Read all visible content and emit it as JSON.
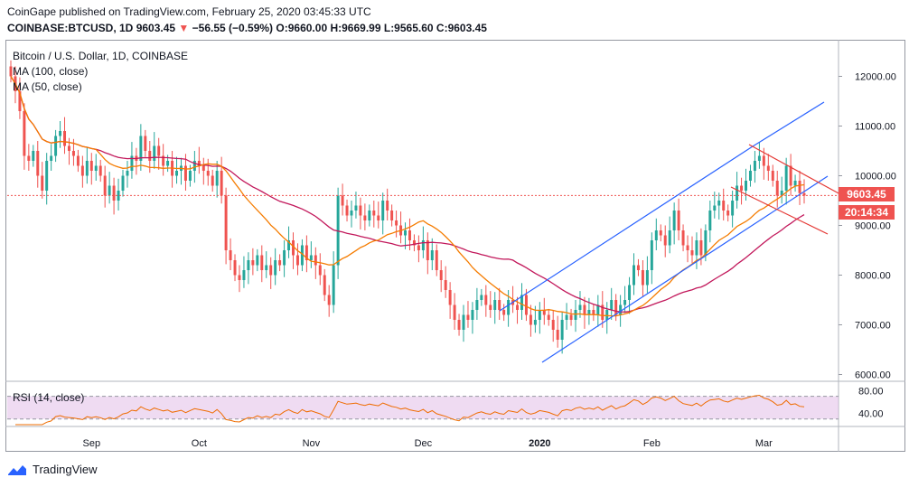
{
  "header": {
    "published": "CoinGape published on TradingView.com, February 25, 2020 03:45:33 UTC",
    "symbol": "COINBASE:BTCUSD, 1D",
    "last": "9603.45",
    "change": "−56.55 (−0.59%)",
    "open": "O:9660.00",
    "high": "H:9669.99",
    "low": "L:9565.60",
    "close": "C:9603.45"
  },
  "legend": {
    "title": "Bitcoin / U.S. Dollar, 1D, COINBASE",
    "ma100": "MA (100, close)",
    "ma50": "MA (50, close)"
  },
  "rsi": {
    "label": "RSI (14, close)",
    "ticks": [
      "80.00",
      "40.00"
    ]
  },
  "price_tag": {
    "value": "9603.45",
    "countdown": "20:14:34"
  },
  "footer": {
    "brand": "TradingView"
  },
  "colors": {
    "up": "#26a69a",
    "down": "#ef5350",
    "ma100": "#c2185b",
    "ma50": "#f57c00",
    "channel": "#2962ff",
    "wedge": "#e53935",
    "rsi_line": "#ef6c00",
    "rsi_band": "#e1bee7"
  },
  "chart_data": {
    "type": "candlestick",
    "x_ticks": [
      "Sep",
      "Oct",
      "Nov",
      "Dec",
      "2020",
      "Feb",
      "Mar"
    ],
    "y_ticks": [
      "12000.00",
      "11000.00",
      "10000.00",
      "9000.00",
      "8000.00",
      "7000.00",
      "6000.00"
    ],
    "ylim": [
      5900,
      12700
    ],
    "candles_close": [
      12000,
      11700,
      11300,
      10400,
      10300,
      10500,
      10000,
      9700,
      10300,
      10400,
      10800,
      10900,
      10600,
      10500,
      10400,
      10200,
      10000,
      10300,
      10100,
      10200,
      10000,
      9600,
      9800,
      9500,
      9700,
      10000,
      10100,
      10400,
      10300,
      10800,
      10500,
      10300,
      10600,
      10400,
      10200,
      10300,
      10000,
      10100,
      10200,
      9900,
      10100,
      10300,
      10200,
      10100,
      10000,
      9800,
      10100,
      9600,
      8500,
      8300,
      8000,
      7900,
      8100,
      8300,
      8200,
      8400,
      8100,
      8200,
      8000,
      8300,
      8200,
      8500,
      8700,
      8400,
      8200,
      8600,
      8300,
      8400,
      8200,
      8000,
      7600,
      7400,
      8200,
      9600,
      9400,
      9200,
      9300,
      9400,
      9200,
      9100,
      9300,
      9200,
      9100,
      9500,
      9300,
      9100,
      9000,
      8800,
      8900,
      8700,
      8600,
      8500,
      8700,
      8300,
      8500,
      8100,
      7900,
      7700,
      7400,
      7100,
      6900,
      7200,
      7100,
      7300,
      7500,
      7600,
      7400,
      7300,
      7500,
      7300,
      7200,
      7500,
      7400,
      7300,
      7600,
      7200,
      7000,
      7100,
      7300,
      7200,
      7100,
      6900,
      6700,
      7100,
      7200,
      7100,
      7300,
      7400,
      7200,
      7300,
      7200,
      7400,
      7100,
      7300,
      7500,
      7200,
      7400,
      7500,
      7800,
      8200,
      8100,
      7800,
      8100,
      8700,
      8900,
      8800,
      8600,
      8900,
      9300,
      8900,
      8600,
      8500,
      8400,
      8700,
      8400,
      8900,
      9300,
      9400,
      9500,
      9300,
      9200,
      9500,
      9800,
      9700,
      9900,
      10100,
      10300,
      10400,
      10200,
      10100,
      9900,
      9600,
      9700,
      10200,
      9800,
      9900,
      9650,
      9600
    ],
    "ma50_label": "MA (50, close)",
    "ma100_label": "MA (100, close)",
    "annotations": [
      "ascending channel (blue)",
      "descending wedge (red)"
    ],
    "rsi_ylim": [
      20,
      90
    ],
    "rsi_upper": 70,
    "rsi_lower": 30
  }
}
